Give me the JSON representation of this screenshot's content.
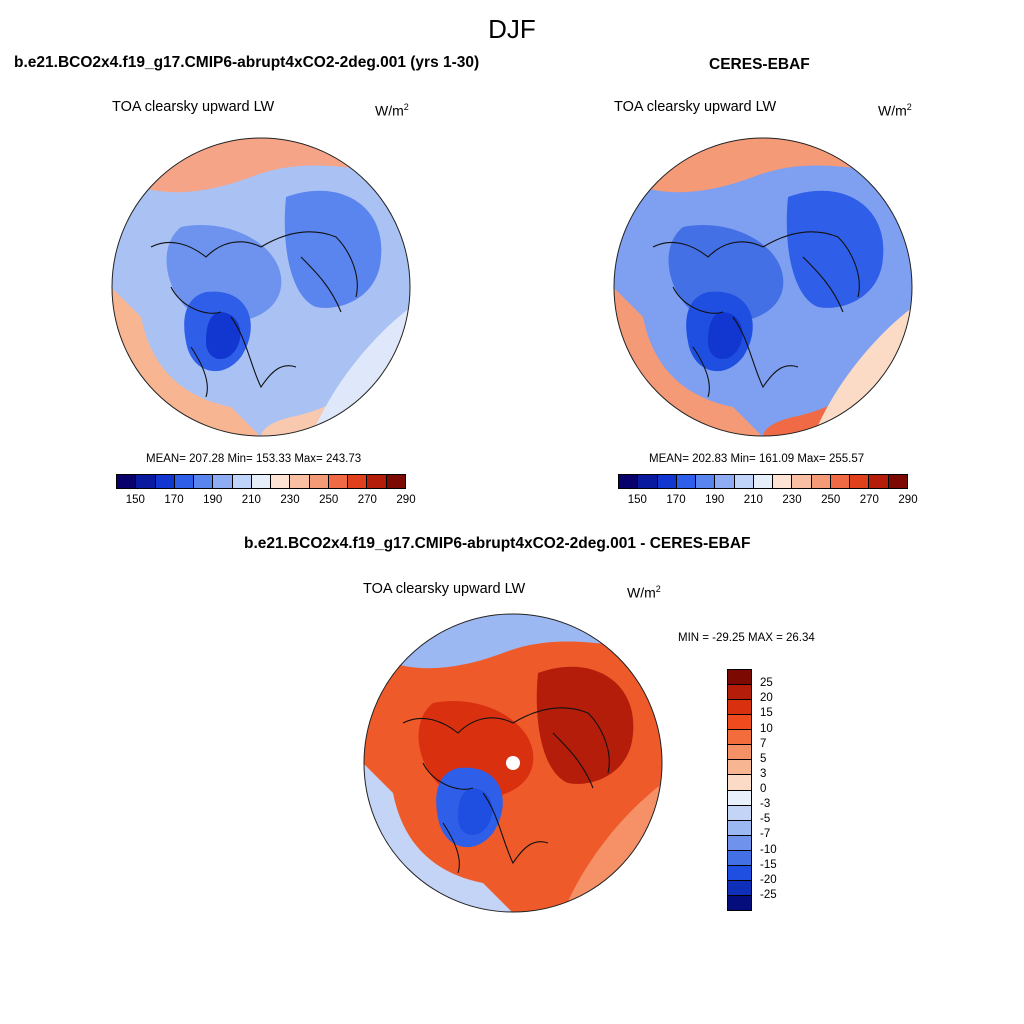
{
  "figure": {
    "season": "DJF"
  },
  "panels": [
    {
      "title": "b.e21.BCO2x4.f19_g17.CMIP6-abrupt4xCO2-2deg.001 (yrs 1-30)",
      "variable": "TOA clearsky upward LW",
      "units_base": "W/m",
      "units_exp": "2",
      "stats": "MEAN= 207.28  Min= 153.33  Max= 243.73"
    },
    {
      "title": "CERES-EBAF",
      "variable": "TOA clearsky upward LW",
      "units_base": "W/m",
      "units_exp": "2",
      "stats": "MEAN= 202.83  Min= 161.09  Max= 255.57"
    },
    {
      "title": "b.e21.BCO2x4.f19_g17.CMIP6-abrupt4xCO2-2deg.001 - CERES-EBAF",
      "variable": "TOA clearsky upward LW",
      "units_base": "W/m",
      "units_exp": "2",
      "stats": "MIN = -29.25 MAX =  26.34"
    }
  ],
  "abs_colorbar": {
    "colors": [
      "#08006b",
      "#0a1a9e",
      "#1236d0",
      "#2f5ee8",
      "#5b85ee",
      "#8fadf4",
      "#c0d3f8",
      "#e6eefa",
      "#fde3d4",
      "#f8bfa3",
      "#f49a76",
      "#ef6a45",
      "#e0401c",
      "#b41d0a",
      "#7c0a02"
    ],
    "ticks": [
      "150",
      "170",
      "190",
      "210",
      "230",
      "250",
      "270",
      "290"
    ]
  },
  "diff_colorbar": {
    "colors": [
      "#7c0a02",
      "#b41d0a",
      "#d93010",
      "#ef4b1e",
      "#f36c3c",
      "#f59067",
      "#f8b592",
      "#fbdbc6",
      "#e8f0fb",
      "#c3d4f7",
      "#9cb8f2",
      "#6f92ec",
      "#4470e6",
      "#1f4fe0",
      "#0f2fb8",
      "#050d7d"
    ],
    "ticks": [
      "25",
      "20",
      "15",
      "10",
      "7",
      "5",
      "3",
      "0",
      "-3",
      "-5",
      "-7",
      "-10",
      "-15",
      "-20",
      "-25"
    ]
  },
  "map_fields": [
    {
      "background": "#a9c2f3",
      "regions": [
        {
          "color": "#f8b592",
          "shape": "edge-left"
        },
        {
          "color": "#f8c9ae",
          "shape": "edge-bottom-right"
        },
        {
          "color": "#f5a488",
          "shape": "edge-top"
        },
        {
          "color": "#dfe8fa",
          "shape": "band-right"
        },
        {
          "color": "#5b85ee",
          "shape": "blob-right"
        },
        {
          "color": "#6d93ee",
          "shape": "blob-center"
        },
        {
          "color": "#2f5ee8",
          "shape": "blob-greenland"
        },
        {
          "color": "#1236d0",
          "shape": "core-greenland"
        }
      ]
    },
    {
      "background": "#7fa0f0",
      "regions": [
        {
          "color": "#f49a76",
          "shape": "edge-left"
        },
        {
          "color": "#ef6a45",
          "shape": "edge-bottom-right"
        },
        {
          "color": "#f49a76",
          "shape": "edge-top"
        },
        {
          "color": "#fbdbc6",
          "shape": "band-right"
        },
        {
          "color": "#2f5ee8",
          "shape": "blob-right"
        },
        {
          "color": "#4470e6",
          "shape": "blob-center"
        },
        {
          "color": "#1f4fe0",
          "shape": "blob-greenland"
        },
        {
          "color": "#1236d0",
          "shape": "core-greenland"
        }
      ]
    },
    {
      "background": "#ef5a2a",
      "regions": [
        {
          "color": "#9cb8f2",
          "shape": "edge-top"
        },
        {
          "color": "#f59067",
          "shape": "band-right"
        },
        {
          "color": "#c3d4f7",
          "shape": "edge-left"
        },
        {
          "color": "#b41d0a",
          "shape": "blob-right"
        },
        {
          "color": "#d93010",
          "shape": "blob-center"
        },
        {
          "color": "#2f5ee8",
          "shape": "blob-greenland"
        },
        {
          "color": "#1f4fe0",
          "shape": "core-greenland"
        }
      ]
    }
  ]
}
